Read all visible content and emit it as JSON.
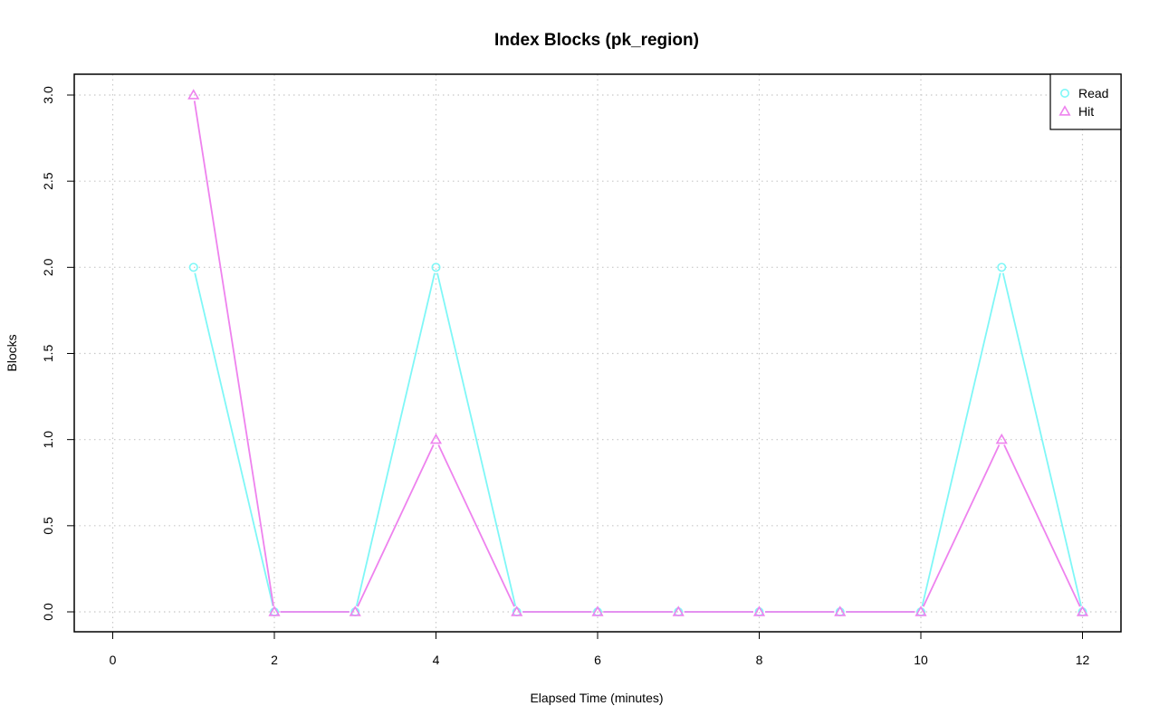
{
  "chart_data": {
    "type": "line",
    "title": "Index Blocks (pk_region)",
    "xlabel": "Elapsed Time (minutes)",
    "ylabel": "Blocks",
    "xlim": [
      0,
      12
    ],
    "ylim": [
      0,
      3
    ],
    "xticks": [
      0,
      2,
      4,
      6,
      8,
      10,
      12
    ],
    "yticks": [
      0.0,
      0.5,
      1.0,
      1.5,
      2.0,
      2.5,
      3.0
    ],
    "ytick_labels": [
      "0.0",
      "0.5",
      "1.0",
      "1.5",
      "2.0",
      "2.5",
      "3.0"
    ],
    "grid": true,
    "legend_position": "top-right",
    "x": [
      1,
      2,
      3,
      4,
      5,
      6,
      7,
      8,
      9,
      10,
      11,
      12
    ],
    "series": [
      {
        "name": "Read",
        "color": "#7ff7f7",
        "marker": "circle",
        "values": [
          2,
          0,
          0,
          2,
          0,
          0,
          0,
          0,
          0,
          0,
          2,
          0
        ]
      },
      {
        "name": "Hit",
        "color": "#ee82ee",
        "marker": "triangle",
        "values": [
          3,
          0,
          0,
          1,
          0,
          0,
          0,
          0,
          0,
          0,
          1,
          0
        ]
      }
    ]
  }
}
